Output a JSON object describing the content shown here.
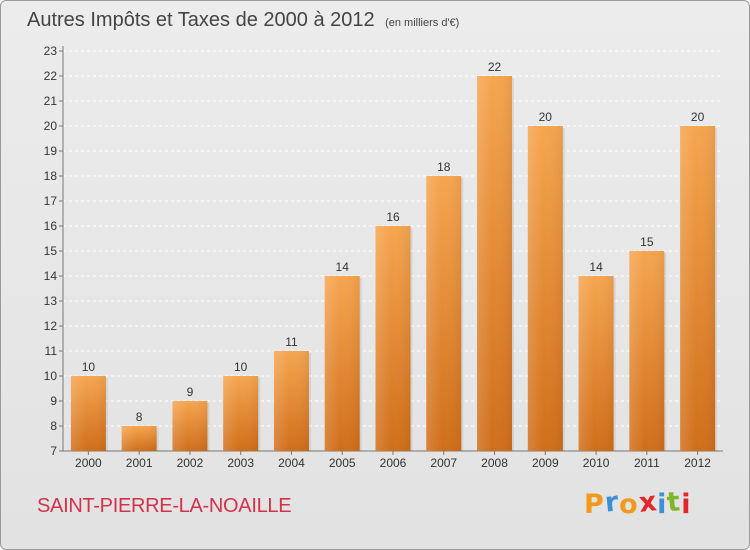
{
  "header": {
    "title": "Autres Impôts et Taxes de 2000 à 2012",
    "subtitle": "(en milliers d'€)"
  },
  "footer": {
    "commune": "SAINT-PIERRE-LA-NOAILLE",
    "logo": "Proxiti"
  },
  "colors": {
    "bar_light": "#f6a54f",
    "bar_dark": "#d06e1a",
    "commune_text": "#d2334a",
    "logo_letters": [
      "#f29a1c",
      "#3a8fd6",
      "#f29a1c",
      "#e2262a",
      "#3a8fd6",
      "#83b52a",
      "#e2262a"
    ]
  },
  "chart_data": {
    "type": "bar",
    "categories": [
      "2000",
      "2001",
      "2002",
      "2003",
      "2004",
      "2005",
      "2006",
      "2007",
      "2008",
      "2009",
      "2010",
      "2011",
      "2012"
    ],
    "values": [
      10,
      8,
      9,
      10,
      11,
      14,
      16,
      18,
      22,
      20,
      14,
      15,
      20
    ],
    "data_labels": [
      "10",
      "8",
      "9",
      "10",
      "11",
      "14",
      "16",
      "18",
      "22",
      "20",
      "14",
      "15",
      "20"
    ],
    "ylim": [
      7,
      23
    ],
    "yticks": [
      "7",
      "8",
      "9",
      "10",
      "11",
      "12",
      "13",
      "14",
      "15",
      "16",
      "17",
      "18",
      "19",
      "20",
      "21",
      "22",
      "23"
    ],
    "grid": true,
    "legend": "none"
  }
}
